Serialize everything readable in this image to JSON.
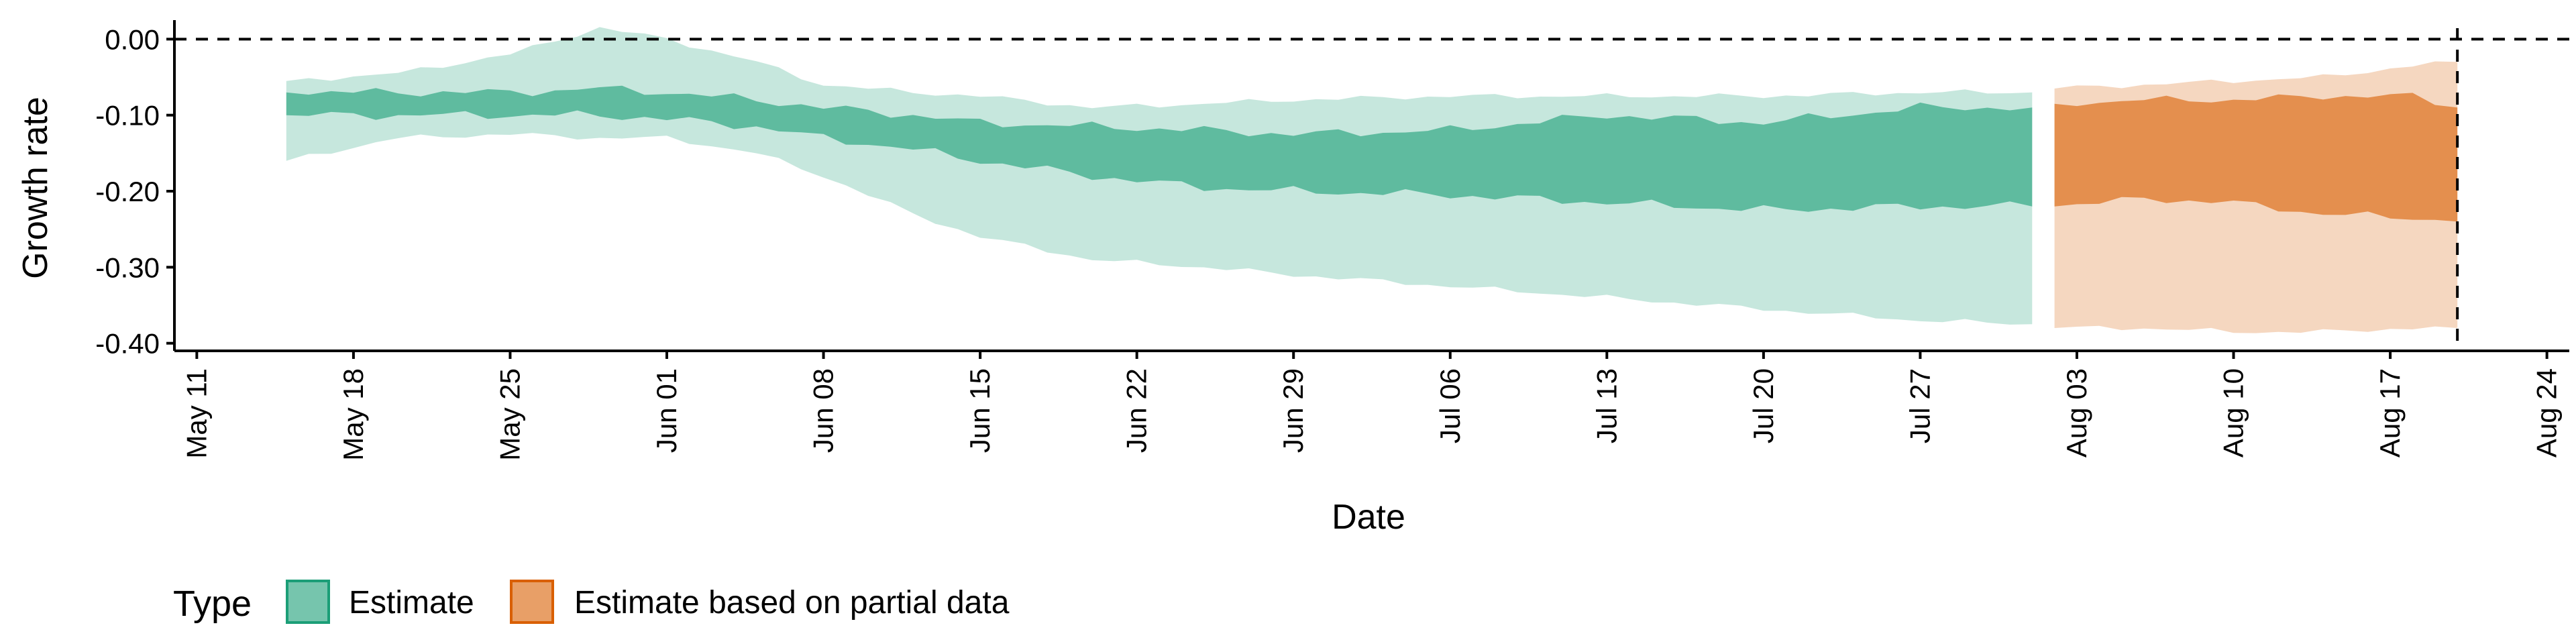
{
  "chart_data": {
    "type": "area",
    "xlabel": "Date",
    "ylabel": "Growth rate",
    "x_range": [
      "2020-05-10",
      "2020-08-25"
    ],
    "ylim": [
      -0.41,
      0.025
    ],
    "y_ticks": [
      0.0,
      -0.1,
      -0.2,
      -0.3,
      -0.4
    ],
    "y_tick_labels": [
      "0.00",
      "-0.10",
      "-0.20",
      "-0.30",
      "-0.40"
    ],
    "x_ticks": [
      "2020-05-11",
      "2020-05-18",
      "2020-05-25",
      "2020-06-01",
      "2020-06-08",
      "2020-06-15",
      "2020-06-22",
      "2020-06-29",
      "2020-07-06",
      "2020-07-13",
      "2020-07-20",
      "2020-07-27",
      "2020-08-03",
      "2020-08-10",
      "2020-08-17",
      "2020-08-24"
    ],
    "x_tick_labels": [
      "May 11",
      "May 18",
      "May 25",
      "Jun 01",
      "Jun 08",
      "Jun 15",
      "Jun 22",
      "Jun 29",
      "Jul 06",
      "Jul 13",
      "Jul 20",
      "Jul 27",
      "Aug 03",
      "Aug 10",
      "Aug 17",
      "Aug 24"
    ],
    "reference_lines": {
      "horizontal_y": 0.0,
      "vertical_x": "2020-08-20"
    },
    "grid": false,
    "legend": {
      "title": "Type",
      "position": "bottom-left"
    },
    "series": [
      {
        "name": "Estimate",
        "color": "#1b9e77",
        "outer_alpha": 0.25,
        "inner_alpha": 0.6,
        "x_start": "2020-05-15",
        "x_end": "2020-08-01",
        "key_x": [
          "2020-05-15",
          "2020-05-20",
          "2020-05-25",
          "2020-05-29",
          "2020-06-01",
          "2020-06-05",
          "2020-06-08",
          "2020-06-12",
          "2020-06-15",
          "2020-06-20",
          "2020-06-25",
          "2020-06-29",
          "2020-07-06",
          "2020-07-13",
          "2020-07-20",
          "2020-07-27",
          "2020-08-01"
        ],
        "outer_upper": [
          -0.055,
          -0.045,
          -0.02,
          0.015,
          0.0,
          -0.03,
          -0.06,
          -0.07,
          -0.075,
          -0.09,
          -0.085,
          -0.08,
          -0.075,
          -0.075,
          -0.075,
          -0.07,
          -0.07
        ],
        "inner_upper": [
          -0.07,
          -0.07,
          -0.07,
          -0.065,
          -0.07,
          -0.08,
          -0.09,
          -0.1,
          -0.11,
          -0.115,
          -0.12,
          -0.125,
          -0.12,
          -0.1,
          -0.11,
          -0.09,
          -0.09
        ],
        "inner_lower": [
          -0.1,
          -0.1,
          -0.1,
          -0.1,
          -0.105,
          -0.115,
          -0.13,
          -0.145,
          -0.16,
          -0.18,
          -0.195,
          -0.2,
          -0.205,
          -0.215,
          -0.225,
          -0.22,
          -0.22
        ],
        "outer_lower": [
          -0.16,
          -0.13,
          -0.125,
          -0.13,
          -0.13,
          -0.15,
          -0.18,
          -0.23,
          -0.26,
          -0.29,
          -0.3,
          -0.31,
          -0.325,
          -0.34,
          -0.355,
          -0.37,
          -0.375
        ]
      },
      {
        "name": "Estimate based on partial data",
        "color": "#d95f02",
        "outer_alpha": 0.25,
        "inner_alpha": 0.6,
        "x_start": "2020-08-02",
        "x_end": "2020-08-20",
        "key_x": [
          "2020-08-02",
          "2020-08-06",
          "2020-08-10",
          "2020-08-14",
          "2020-08-18",
          "2020-08-20"
        ],
        "outer_upper": [
          -0.065,
          -0.06,
          -0.055,
          -0.05,
          -0.035,
          -0.03
        ],
        "inner_upper": [
          -0.085,
          -0.08,
          -0.08,
          -0.075,
          -0.075,
          -0.09
        ],
        "inner_lower": [
          -0.22,
          -0.21,
          -0.215,
          -0.23,
          -0.235,
          -0.24
        ],
        "outer_lower": [
          -0.38,
          -0.38,
          -0.385,
          -0.385,
          -0.38,
          -0.38
        ]
      }
    ]
  }
}
